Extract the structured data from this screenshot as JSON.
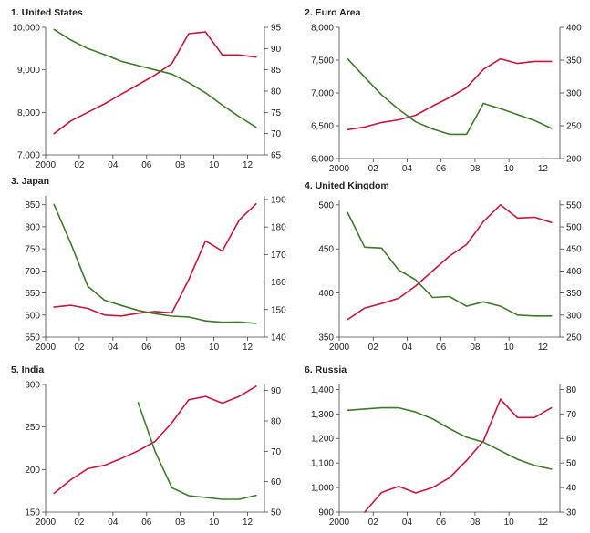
{
  "colors": {
    "left_series": "#c8163c",
    "right_series": "#3e7a2a"
  },
  "chart_data": [
    {
      "type": "line",
      "title": "1. United States",
      "x_ticks": [
        "2000",
        "02",
        "04",
        "06",
        "08",
        "10",
        "12"
      ],
      "x_range": [
        2000,
        2013
      ],
      "left_axis": {
        "ticks": [
          "7,000",
          "8,000",
          "9,000",
          "10,000"
        ],
        "range": [
          7000,
          10000
        ]
      },
      "right_axis": {
        "ticks": [
          "65",
          "70",
          "75",
          "80",
          "85",
          "90",
          "95"
        ],
        "range": [
          65,
          95
        ]
      },
      "series": [
        {
          "axis": "left",
          "color": "#c8163c",
          "x": [
            2000.5,
            2001.5,
            2002.5,
            2003.5,
            2004.5,
            2005.5,
            2006.5,
            2007.5,
            2008.5,
            2009.5,
            2010.5,
            2011.5,
            2012.5
          ],
          "values": [
            7500,
            7800,
            8000,
            8200,
            8430,
            8650,
            8880,
            9150,
            9850,
            9890,
            9350,
            9350,
            9300
          ]
        },
        {
          "axis": "right",
          "color": "#3e7a2a",
          "x": [
            2000.5,
            2001.5,
            2002.5,
            2003.5,
            2004.5,
            2005.5,
            2006.5,
            2007.5,
            2008.5,
            2009.5,
            2010.5,
            2011.5,
            2012.5
          ],
          "values": [
            94.5,
            92,
            90,
            88.6,
            87,
            86,
            85,
            84,
            82,
            79.6,
            76.7,
            74,
            71.5
          ]
        }
      ]
    },
    {
      "type": "line",
      "title": "2. Euro Area",
      "x_ticks": [
        "2000",
        "02",
        "04",
        "06",
        "08",
        "10",
        "12"
      ],
      "x_range": [
        2000,
        2013
      ],
      "left_axis": {
        "ticks": [
          "6,000",
          "6,500",
          "7,000",
          "7,500",
          "8,000"
        ],
        "range": [
          6000,
          8000
        ]
      },
      "right_axis": {
        "ticks": [
          "200",
          "250",
          "300",
          "350",
          "400"
        ],
        "range": [
          200,
          400
        ]
      },
      "series": [
        {
          "axis": "left",
          "color": "#c8163c",
          "x": [
            2000.5,
            2001.5,
            2002.5,
            2003.5,
            2004.5,
            2005.5,
            2006.5,
            2007.5,
            2008.5,
            2009.5,
            2010.5,
            2011.5,
            2012.5
          ],
          "values": [
            6440,
            6480,
            6550,
            6590,
            6660,
            6800,
            6930,
            7080,
            7360,
            7520,
            7450,
            7480,
            7480
          ]
        },
        {
          "axis": "right",
          "color": "#3e7a2a",
          "x": [
            2000.5,
            2001.5,
            2002.5,
            2003.5,
            2004.5,
            2005.5,
            2006.5,
            2007.5,
            2008.5,
            2009.5,
            2010.5,
            2011.5,
            2012.5
          ],
          "values": [
            352,
            324,
            297,
            275,
            256,
            245,
            237,
            237,
            284,
            276,
            267,
            258,
            246
          ]
        }
      ]
    },
    {
      "type": "line",
      "title": "3. Japan",
      "x_ticks": [
        "2000",
        "02",
        "04",
        "06",
        "08",
        "10",
        "12"
      ],
      "x_range": [
        2000,
        2013
      ],
      "left_axis": {
        "ticks": [
          "550",
          "600",
          "650",
          "700",
          "750",
          "800",
          "850"
        ],
        "range": [
          550,
          870
        ]
      },
      "right_axis": {
        "ticks": [
          "140",
          "150",
          "160",
          "170",
          "180",
          "190"
        ],
        "range": [
          140,
          191.3
        ]
      },
      "series": [
        {
          "axis": "left",
          "color": "#c8163c",
          "x": [
            2000.5,
            2001.5,
            2002.5,
            2003.5,
            2004.5,
            2005.5,
            2006.5,
            2007.5,
            2008.5,
            2009.5,
            2010.5,
            2011.5,
            2012.5
          ],
          "values": [
            618,
            622,
            615,
            600,
            598,
            604,
            608,
            605,
            680,
            768,
            745,
            815,
            852
          ]
        },
        {
          "axis": "right",
          "color": "#3e7a2a",
          "x": [
            2000.5,
            2001.5,
            2002.5,
            2003.5,
            2004.5,
            2005.5,
            2006.5,
            2007.5,
            2008.5,
            2009.5,
            2010.5,
            2011.5,
            2012.5
          ],
          "values": [
            188.2,
            174,
            158.5,
            153.4,
            151.5,
            149.7,
            148.5,
            147.6,
            147.3,
            145.9,
            145.4,
            145.5,
            145
          ]
        }
      ]
    },
    {
      "type": "line",
      "title": "4. United Kingdom",
      "x_ticks": [
        "2000",
        "02",
        "04",
        "06",
        "08",
        "10",
        "12"
      ],
      "x_range": [
        2000,
        2013
      ],
      "left_axis": {
        "ticks": [
          "350",
          "400",
          "450",
          "500"
        ],
        "range": [
          350,
          505
        ]
      },
      "right_axis": {
        "ticks": [
          "250",
          "300",
          "350",
          "400",
          "450",
          "500",
          "550"
        ],
        "range": [
          250,
          560
        ]
      },
      "series": [
        {
          "axis": "left",
          "color": "#c8163c",
          "x": [
            2000.5,
            2001.5,
            2002.5,
            2003.5,
            2004.5,
            2005.5,
            2006.5,
            2007.5,
            2008.5,
            2009.5,
            2010.5,
            2011.5,
            2012.5
          ],
          "values": [
            370,
            383,
            388,
            394,
            408,
            425,
            442,
            455,
            481,
            500,
            485,
            486,
            480
          ]
        },
        {
          "axis": "right",
          "color": "#3e7a2a",
          "x": [
            2000.5,
            2001.5,
            2002.5,
            2003.5,
            2004.5,
            2005.5,
            2006.5,
            2007.5,
            2008.5,
            2009.5,
            2010.5,
            2011.5,
            2012.5
          ],
          "values": [
            532,
            454,
            452,
            402,
            380,
            340,
            342,
            320,
            330,
            320,
            300,
            298,
            298
          ]
        }
      ]
    },
    {
      "type": "line",
      "title": "5. India",
      "x_ticks": [
        "2000",
        "02",
        "04",
        "06",
        "08",
        "10",
        "12"
      ],
      "x_range": [
        2000,
        2013
      ],
      "left_axis": {
        "ticks": [
          "150",
          "200",
          "250",
          "300"
        ],
        "range": [
          150,
          300
        ]
      },
      "right_axis": {
        "ticks": [
          "50",
          "60",
          "70",
          "80",
          "90"
        ],
        "range": [
          50,
          92
        ]
      },
      "series": [
        {
          "axis": "left",
          "color": "#c8163c",
          "x": [
            2000.5,
            2001.5,
            2002.5,
            2003.5,
            2004.5,
            2005.5,
            2006.5,
            2007.5,
            2008.5,
            2009.5,
            2010.5,
            2011.5,
            2012.5
          ],
          "values": [
            172,
            188,
            201,
            205,
            213,
            222,
            233,
            255,
            282,
            286,
            278,
            286,
            298
          ]
        },
        {
          "axis": "right",
          "color": "#3e7a2a",
          "x": [
            2005.5,
            2006.5,
            2007.5,
            2008.5,
            2009.5,
            2010.5,
            2011.5,
            2012.5
          ],
          "values": [
            86,
            70,
            58,
            55.4,
            54.8,
            54.2,
            54.2,
            55.5
          ]
        }
      ]
    },
    {
      "type": "line",
      "title": "6. Russia",
      "x_ticks": [
        "2000",
        "02",
        "04",
        "06",
        "08",
        "10",
        "12"
      ],
      "x_range": [
        2000,
        2013
      ],
      "left_axis": {
        "ticks": [
          "900",
          "1,000",
          "1,100",
          "1,200",
          "1,300",
          "1,400"
        ],
        "range": [
          900,
          1420
        ]
      },
      "right_axis": {
        "ticks": [
          "30",
          "40",
          "50",
          "60",
          "70",
          "80"
        ],
        "range": [
          30,
          82
        ]
      },
      "series": [
        {
          "axis": "left",
          "color": "#c8163c",
          "x": [
            2001.5,
            2002.5,
            2003.5,
            2004.5,
            2005.5,
            2006.5,
            2007.5,
            2008.5,
            2009.5,
            2010.5,
            2011.5,
            2012.5
          ],
          "values": [
            900,
            980,
            1005,
            978,
            1000,
            1040,
            1110,
            1190,
            1360,
            1285,
            1285,
            1325
          ]
        },
        {
          "axis": "right",
          "color": "#3e7a2a",
          "x": [
            2000.5,
            2001.5,
            2002.5,
            2003.5,
            2004.5,
            2005.5,
            2006.5,
            2007.5,
            2008.5,
            2009.5,
            2010.5,
            2011.5,
            2012.5
          ],
          "values": [
            71.5,
            72,
            72.5,
            72.5,
            70.8,
            68,
            64,
            60.5,
            58.5,
            55,
            51.5,
            49,
            47.5
          ]
        }
      ]
    }
  ]
}
